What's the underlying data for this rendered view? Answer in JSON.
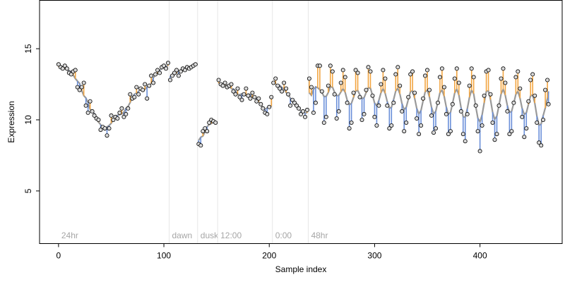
{
  "chart_data": {
    "type": "scatter",
    "title": "",
    "xlabel": "Sample index",
    "ylabel": "Expression",
    "xlim": [
      -18,
      478
    ],
    "ylim": [
      1.3,
      18.4
    ],
    "x_ticks": [
      0,
      100,
      200,
      300,
      400
    ],
    "y_ticks": [
      5,
      10,
      15
    ],
    "grid": false,
    "legend": "none",
    "colors": {
      "points_fill": "#d9d9d9",
      "points_stroke": "#000000",
      "fit_line": "#999999",
      "above_fit_segment": "#f2a541",
      "below_fit_segment": "#6a8fd9",
      "annotation_line": "#e6e6e6",
      "annotation_text": "#a6a6a6"
    },
    "annotations": [
      {
        "label": "24hr",
        "x": 0
      },
      {
        "label": "dawn",
        "x": 105
      },
      {
        "label": "dusk",
        "x": 132
      },
      {
        "label": "12:00",
        "x": 151
      },
      {
        "label": "0:00",
        "x": 203
      },
      {
        "label": "48hr",
        "x": 237
      }
    ],
    "segments": [
      {
        "name": "24hr",
        "x_start": 0,
        "x_end": 104,
        "points": [
          [
            0,
            13.9
          ],
          [
            2,
            13.7
          ],
          [
            4,
            13.6
          ],
          [
            6,
            13.8
          ],
          [
            8,
            13.6
          ],
          [
            10,
            13.3
          ],
          [
            12,
            13.2
          ],
          [
            14,
            13.4
          ],
          [
            16,
            13.5
          ],
          [
            18,
            12.3
          ],
          [
            20,
            12.1
          ],
          [
            22,
            12.3
          ],
          [
            24,
            12.6
          ],
          [
            26,
            11.0
          ],
          [
            28,
            10.5
          ],
          [
            30,
            11.3
          ],
          [
            32,
            10.6
          ],
          [
            34,
            10.3
          ],
          [
            36,
            10.1
          ],
          [
            38,
            10.0
          ],
          [
            40,
            9.3
          ],
          [
            42,
            9.5
          ],
          [
            44,
            9.4
          ],
          [
            46,
            8.9
          ],
          [
            48,
            9.4
          ],
          [
            50,
            10.3
          ],
          [
            52,
            10.0
          ],
          [
            54,
            10.2
          ],
          [
            56,
            10.1
          ],
          [
            58,
            10.5
          ],
          [
            60,
            10.8
          ],
          [
            62,
            10.2
          ],
          [
            64,
            10.4
          ],
          [
            66,
            10.8
          ],
          [
            68,
            11.8
          ],
          [
            70,
            11.5
          ],
          [
            72,
            11.6
          ],
          [
            74,
            12.3
          ],
          [
            76,
            11.8
          ],
          [
            78,
            12.2
          ],
          [
            80,
            12.1
          ],
          [
            82,
            12.5
          ],
          [
            84,
            11.5
          ],
          [
            86,
            12.4
          ],
          [
            88,
            13.1
          ],
          [
            90,
            12.6
          ],
          [
            92,
            13.2
          ],
          [
            94,
            13.5
          ],
          [
            96,
            13.3
          ],
          [
            98,
            13.7
          ],
          [
            100,
            13.8
          ],
          [
            102,
            13.6
          ],
          [
            104,
            14.0
          ]
        ]
      },
      {
        "name": "dawn",
        "x_start": 105,
        "x_end": 131,
        "points": [
          [
            106,
            12.8
          ],
          [
            108,
            13.1
          ],
          [
            110,
            13.3
          ],
          [
            112,
            13.5
          ],
          [
            114,
            13.1
          ],
          [
            116,
            13.4
          ],
          [
            118,
            13.6
          ],
          [
            120,
            13.5
          ],
          [
            122,
            13.7
          ],
          [
            124,
            13.6
          ],
          [
            126,
            13.7
          ],
          [
            128,
            13.8
          ],
          [
            130,
            13.9
          ]
        ]
      },
      {
        "name": "dusk",
        "x_start": 132,
        "x_end": 150,
        "points": [
          [
            133,
            8.3
          ],
          [
            135,
            8.2
          ],
          [
            137,
            9.2
          ],
          [
            139,
            9.4
          ],
          [
            141,
            9.2
          ],
          [
            143,
            9.8
          ],
          [
            145,
            10.0
          ],
          [
            147,
            9.9
          ],
          [
            149,
            9.8
          ]
        ]
      },
      {
        "name": "12:00",
        "x_start": 151,
        "x_end": 202,
        "points": [
          [
            152,
            12.8
          ],
          [
            154,
            12.5
          ],
          [
            156,
            12.4
          ],
          [
            158,
            12.6
          ],
          [
            160,
            12.3
          ],
          [
            162,
            12.4
          ],
          [
            164,
            12.5
          ],
          [
            166,
            12.0
          ],
          [
            168,
            11.8
          ],
          [
            170,
            12.2
          ],
          [
            172,
            11.6
          ],
          [
            174,
            11.4
          ],
          [
            176,
            11.8
          ],
          [
            178,
            12.2
          ],
          [
            180,
            11.7
          ],
          [
            182,
            11.5
          ],
          [
            184,
            11.9
          ],
          [
            186,
            11.6
          ],
          [
            188,
            11.3
          ],
          [
            190,
            11.5
          ],
          [
            192,
            11.1
          ],
          [
            194,
            10.8
          ],
          [
            196,
            10.5
          ],
          [
            198,
            10.4
          ],
          [
            200,
            10.9
          ],
          [
            202,
            11.6
          ]
        ]
      },
      {
        "name": "0:00",
        "x_start": 203,
        "x_end": 236,
        "points": [
          [
            204,
            12.6
          ],
          [
            206,
            12.9
          ],
          [
            208,
            12.4
          ],
          [
            210,
            12.2
          ],
          [
            212,
            12.0
          ],
          [
            214,
            12.6
          ],
          [
            216,
            12.2
          ],
          [
            218,
            11.8
          ],
          [
            220,
            11.0
          ],
          [
            222,
            11.4
          ],
          [
            224,
            11.2
          ],
          [
            226,
            11.0
          ],
          [
            228,
            10.8
          ],
          [
            230,
            10.4
          ],
          [
            232,
            10.6
          ],
          [
            234,
            10.2
          ],
          [
            236,
            10.7
          ]
        ]
      },
      {
        "name": "48hr",
        "x_start": 237,
        "x_end": 465,
        "points": [
          [
            238,
            12.9
          ],
          [
            240,
            12.3
          ],
          [
            242,
            10.5
          ],
          [
            244,
            11.2
          ],
          [
            246,
            13.8
          ],
          [
            248,
            13.8
          ],
          [
            250,
            12.0
          ],
          [
            252,
            9.8
          ],
          [
            254,
            10.2
          ],
          [
            256,
            12.4
          ],
          [
            258,
            13.8
          ],
          [
            260,
            13.4
          ],
          [
            262,
            11.8
          ],
          [
            264,
            10.1
          ],
          [
            266,
            10.6
          ],
          [
            268,
            12.6
          ],
          [
            270,
            13.5
          ],
          [
            272,
            13.0
          ],
          [
            274,
            11.2
          ],
          [
            276,
            9.4
          ],
          [
            278,
            9.8
          ],
          [
            280,
            11.9
          ],
          [
            282,
            13.5
          ],
          [
            284,
            13.3
          ],
          [
            286,
            11.6
          ],
          [
            288,
            10.0
          ],
          [
            290,
            10.4
          ],
          [
            292,
            12.1
          ],
          [
            294,
            13.7
          ],
          [
            296,
            13.4
          ],
          [
            298,
            11.7
          ],
          [
            300,
            10.2
          ],
          [
            302,
            9.6
          ],
          [
            304,
            11.0
          ],
          [
            306,
            12.5
          ],
          [
            308,
            13.5
          ],
          [
            310,
            12.9
          ],
          [
            312,
            11.0
          ],
          [
            314,
            9.4
          ],
          [
            316,
            9.6
          ],
          [
            318,
            11.2
          ],
          [
            320,
            13.2
          ],
          [
            322,
            13.7
          ],
          [
            324,
            12.4
          ],
          [
            326,
            10.6
          ],
          [
            328,
            9.2
          ],
          [
            330,
            9.8
          ],
          [
            332,
            11.6
          ],
          [
            334,
            13.2
          ],
          [
            336,
            13.4
          ],
          [
            338,
            11.9
          ],
          [
            340,
            10.1
          ],
          [
            342,
            9.0
          ],
          [
            344,
            9.6
          ],
          [
            346,
            11.5
          ],
          [
            348,
            13.1
          ],
          [
            350,
            13.5
          ],
          [
            352,
            12.1
          ],
          [
            354,
            10.3
          ],
          [
            356,
            9.1
          ],
          [
            358,
            9.4
          ],
          [
            360,
            11.2
          ],
          [
            362,
            13.0
          ],
          [
            364,
            13.6
          ],
          [
            366,
            12.3
          ],
          [
            368,
            10.4
          ],
          [
            370,
            9.0
          ],
          [
            372,
            9.2
          ],
          [
            374,
            11.1
          ],
          [
            376,
            12.9
          ],
          [
            378,
            13.6
          ],
          [
            380,
            12.6
          ],
          [
            382,
            10.6
          ],
          [
            384,
            9.0
          ],
          [
            386,
            8.5
          ],
          [
            388,
            10.4
          ],
          [
            390,
            12.4
          ],
          [
            392,
            13.6
          ],
          [
            394,
            13.0
          ],
          [
            396,
            11.0
          ],
          [
            398,
            9.2
          ],
          [
            400,
            7.8
          ],
          [
            402,
            9.6
          ],
          [
            404,
            11.7
          ],
          [
            406,
            13.4
          ],
          [
            408,
            13.5
          ],
          [
            410,
            11.8
          ],
          [
            412,
            9.8
          ],
          [
            414,
            8.6
          ],
          [
            416,
            9.0
          ],
          [
            418,
            11.0
          ],
          [
            420,
            12.9
          ],
          [
            422,
            13.6
          ],
          [
            424,
            12.6
          ],
          [
            426,
            10.6
          ],
          [
            428,
            9.0
          ],
          [
            430,
            9.2
          ],
          [
            432,
            11.2
          ],
          [
            434,
            13.0
          ],
          [
            436,
            13.4
          ],
          [
            438,
            12.2
          ],
          [
            440,
            10.2
          ],
          [
            442,
            8.8
          ],
          [
            444,
            9.4
          ],
          [
            446,
            11.3
          ],
          [
            448,
            12.8
          ],
          [
            450,
            13.2
          ],
          [
            452,
            11.7
          ],
          [
            454,
            9.8
          ],
          [
            456,
            8.4
          ],
          [
            458,
            8.2
          ],
          [
            460,
            10.0
          ],
          [
            462,
            12.1
          ],
          [
            464,
            12.8
          ],
          [
            465,
            11.1
          ]
        ]
      }
    ]
  }
}
